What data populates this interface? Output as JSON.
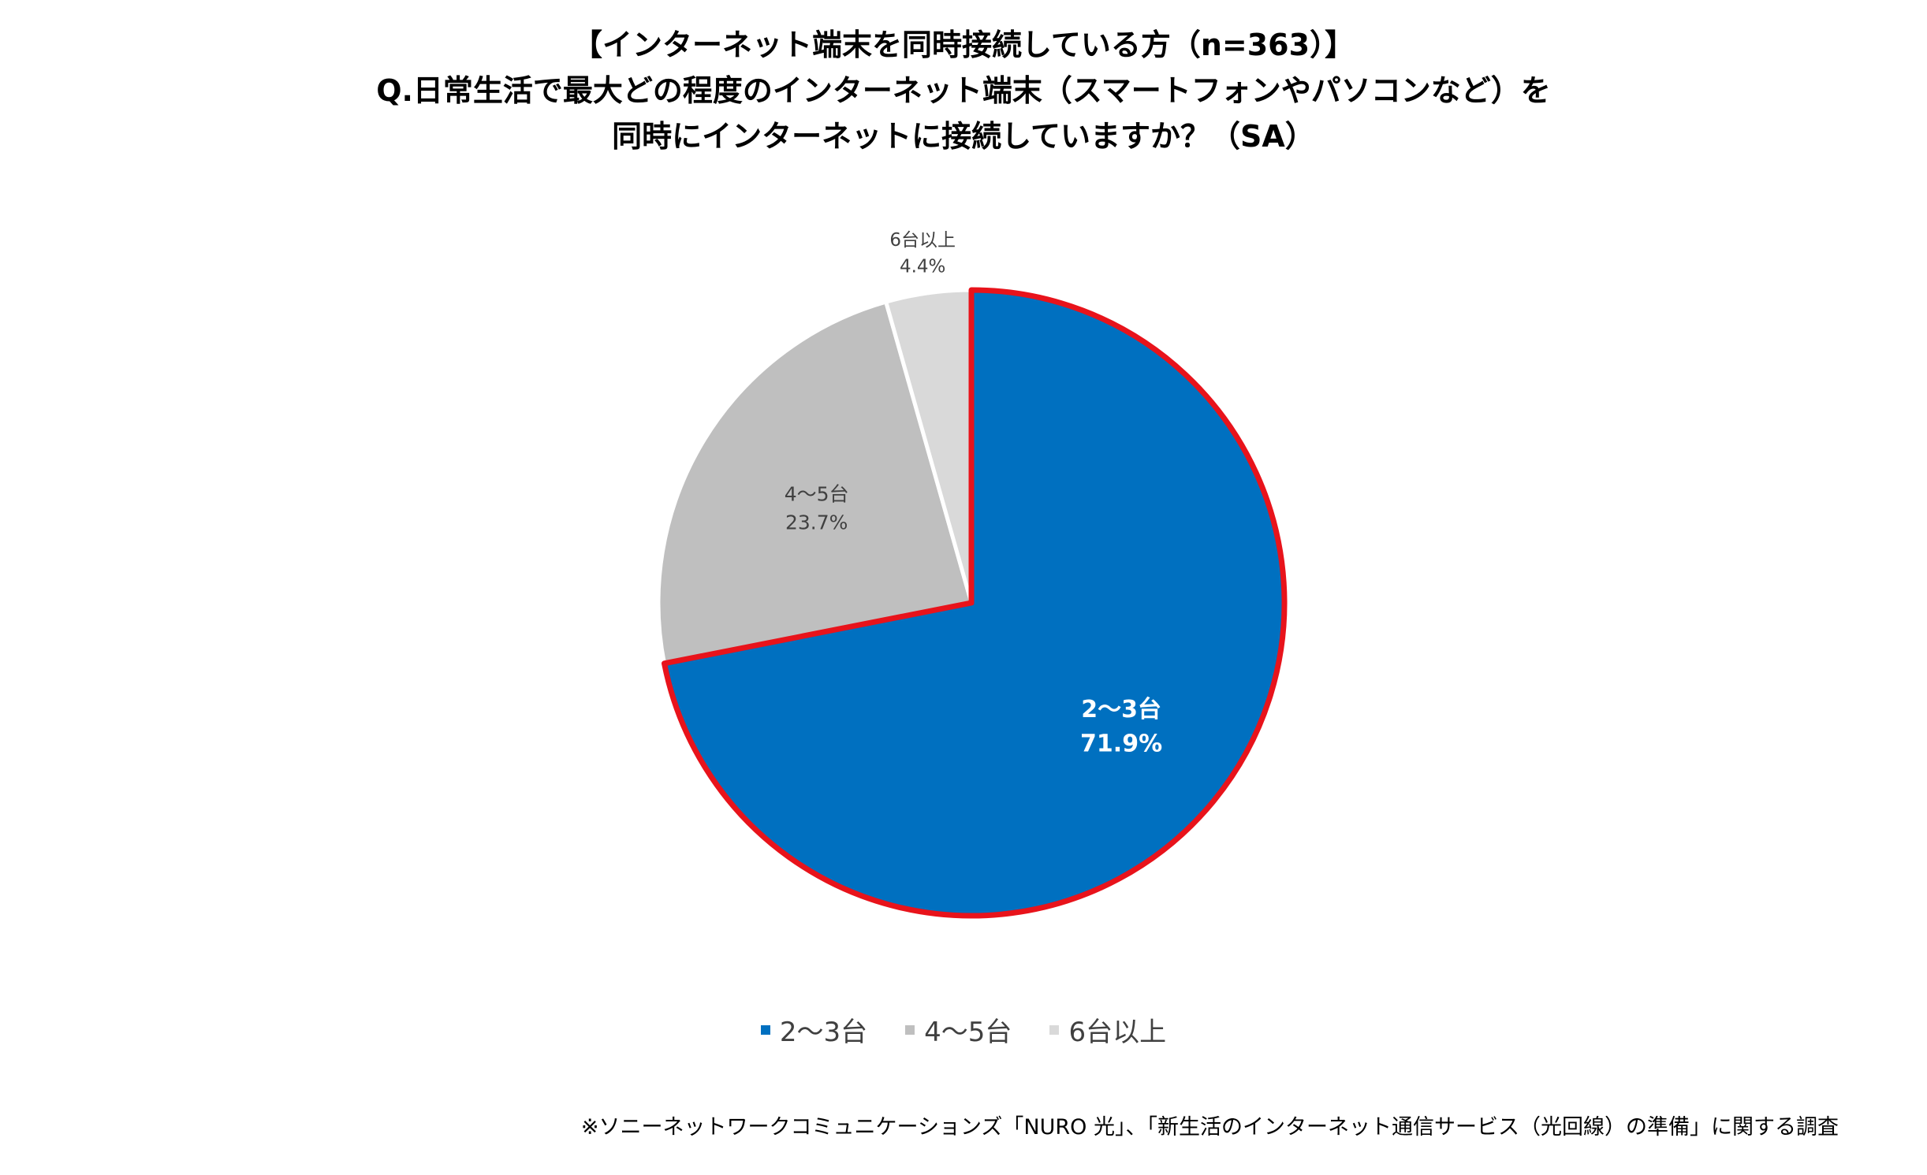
{
  "title_lines": [
    "【インターネット端末を同時接続している方（n=363）】",
    "Q.日常生活で最大どの程度のインターネット端末（スマートフォンやパソコンなど）を",
    "同時にインターネットに接続していますか？（SA）"
  ],
  "chart_data": {
    "type": "pie",
    "categories": [
      "2～3台",
      "4～5台",
      "6台以上"
    ],
    "values": [
      71.9,
      23.7,
      4.4
    ],
    "value_labels": [
      "71.9%",
      "23.7%",
      "4.4%"
    ],
    "colors": [
      "#0070C0",
      "#BFBFBF",
      "#D9D9D9"
    ],
    "highlight_slice": "2～3台",
    "highlight_outline_color": "#E8131B",
    "start_angle_deg": 0,
    "direction": "clockwise",
    "legend_position": "bottom"
  },
  "legend": {
    "items": [
      {
        "label": "2～3台",
        "color": "#0070C0"
      },
      {
        "label": "4～5台",
        "color": "#BFBFBF"
      },
      {
        "label": "6台以上",
        "color": "#D9D9D9"
      }
    ]
  },
  "source_note": "※ソニーネットワークコミュニケーションズ「NURO 光」、「新生活のインターネット通信サービス（光回線）の準備」に関する調査"
}
